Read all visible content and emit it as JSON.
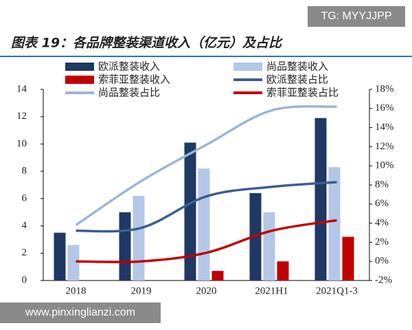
{
  "watermarks": {
    "top": "TG: MYYJJPP",
    "bottom": "www.pinxinglianzi.com"
  },
  "chart_data": {
    "type": "bar_line",
    "title": "图表 19：各品牌整装渠道收入（亿元）及占比",
    "categories": [
      "2018",
      "2019",
      "2020",
      "2021H1",
      "2021Q1-3"
    ],
    "series": [
      {
        "name": "欧派整装收入",
        "kind": "bar",
        "color": "#1f3864",
        "values": [
          3.5,
          5.0,
          10.1,
          6.4,
          11.9
        ]
      },
      {
        "name": "尚品整装收入",
        "kind": "bar",
        "color": "#b4c7e7",
        "values": [
          2.6,
          6.2,
          8.2,
          5.0,
          8.3
        ]
      },
      {
        "name": "索菲亚整装收入",
        "kind": "bar",
        "color": "#c00000",
        "values": [
          null,
          null,
          0.7,
          1.4,
          3.2
        ]
      },
      {
        "name": "欧派整装占比",
        "kind": "line",
        "axis": "y2",
        "color": "#3b5f8f",
        "values": [
          3.2,
          3.5,
          6.8,
          7.8,
          8.3
        ]
      },
      {
        "name": "尚品整装占比",
        "kind": "line",
        "axis": "y2",
        "color": "#9db5d6",
        "values": [
          3.8,
          8.4,
          12.2,
          15.8,
          16.2
        ]
      },
      {
        "name": "索菲亚整装占比",
        "kind": "line",
        "axis": "y2",
        "color": "#c00000",
        "values": [
          0.0,
          0.0,
          0.9,
          3.2,
          4.3
        ]
      }
    ],
    "ylim": [
      0,
      14
    ],
    "yticks": [
      0,
      2,
      4,
      6,
      8,
      10,
      12,
      14
    ],
    "y2lim": [
      -2,
      18
    ],
    "y2ticks": [
      {
        "value": -2,
        "label": "-2%"
      },
      {
        "value": 0,
        "label": "0%"
      },
      {
        "value": 2,
        "label": "2%"
      },
      {
        "value": 4,
        "label": "4%"
      },
      {
        "value": 6,
        "label": "6%"
      },
      {
        "value": 8,
        "label": "8%"
      },
      {
        "value": 10,
        "label": "10%"
      },
      {
        "value": 12,
        "label": "12%"
      },
      {
        "value": 14,
        "label": "14%"
      },
      {
        "value": 16,
        "label": "16%"
      },
      {
        "value": 18,
        "label": "18%"
      }
    ],
    "grid": false
  }
}
